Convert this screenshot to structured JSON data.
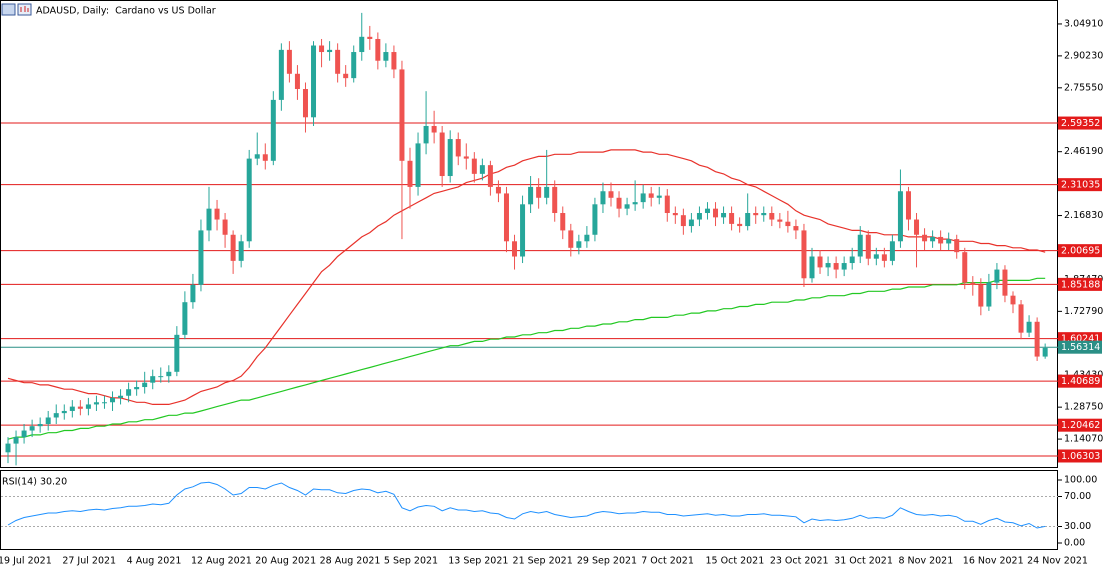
{
  "chart_data": [
    {
      "type": "candlestick",
      "title": "ADAUSD, Daily:  Cardano vs US Dollar",
      "categories": [
        "19 Jul 2021",
        null,
        null,
        null,
        null,
        null,
        null,
        null,
        "27 Jul 2021",
        null,
        null,
        null,
        null,
        null,
        null,
        null,
        "4 Aug 2021",
        null,
        null,
        null,
        null,
        null,
        null,
        null,
        "12 Aug 2021",
        null,
        null,
        null,
        null,
        null,
        null,
        null,
        "20 Aug 2021",
        null,
        null,
        null,
        null,
        null,
        null,
        null,
        "28 Aug 2021",
        null,
        null,
        null,
        null,
        null,
        null,
        null,
        "5 Sep 2021",
        null,
        null,
        null,
        null,
        null,
        null,
        null,
        "13 Sep 2021",
        null,
        null,
        null,
        null,
        null,
        null,
        null,
        "21 Sep 2021",
        null,
        null,
        null,
        null,
        null,
        null,
        null,
        "29 Sep 2021",
        null,
        null,
        null,
        null,
        null,
        null,
        null,
        "7 Oct 2021",
        null,
        null,
        null,
        null,
        null,
        null,
        null,
        "15 Oct 2021",
        null,
        null,
        null,
        null,
        null,
        null,
        null,
        "23 Oct 2021",
        null,
        null,
        null,
        null,
        null,
        null,
        null,
        "31 Oct 2021",
        null,
        null,
        null,
        null,
        null,
        null,
        null,
        "8 Nov 2021",
        null,
        null,
        null,
        null,
        null,
        null,
        null,
        "16 Nov 2021",
        null,
        null,
        null,
        null,
        null,
        null,
        null,
        "24 Nov 2021",
        null
      ],
      "open": [
        1.08,
        1.12,
        1.15,
        1.18,
        1.2,
        1.21,
        1.24,
        1.26,
        1.27,
        1.29,
        1.28,
        1.3,
        1.31,
        1.31,
        1.33,
        1.34,
        1.37,
        1.38,
        1.4,
        1.43,
        1.43,
        1.45,
        1.62,
        1.77,
        1.85,
        2.1,
        2.2,
        2.15,
        2.08,
        1.96,
        2.05,
        2.43,
        2.45,
        2.42,
        2.7,
        2.93,
        2.82,
        2.75,
        2.62,
        2.95,
        2.92,
        2.93,
        2.82,
        2.8,
        2.92,
        2.99,
        2.98,
        2.88,
        2.92,
        2.84,
        2.42,
        2.3,
        2.5,
        2.58,
        2.55,
        2.35,
        2.52,
        2.44,
        2.43,
        2.36,
        2.4,
        2.3,
        2.27,
        2.05,
        1.98,
        2.22,
        2.3,
        2.25,
        2.3,
        2.18,
        2.1,
        2.02,
        2.05,
        2.08,
        2.22,
        2.28,
        2.25,
        2.2,
        2.22,
        2.23,
        2.27,
        2.25,
        2.26,
        2.18,
        2.17,
        2.12,
        2.15,
        2.18,
        2.2,
        2.16,
        2.18,
        2.13,
        2.12,
        2.18,
        2.17,
        2.18,
        2.15,
        2.14,
        2.12,
        2.1,
        1.88,
        1.98,
        1.93,
        1.95,
        1.92,
        1.95,
        1.98,
        2.08,
        1.97,
        1.99,
        1.96,
        2.05,
        2.28,
        2.15,
        2.08,
        2.05,
        2.07,
        2.04,
        2.06,
        2.0,
        1.86,
        1.85,
        1.75,
        1.86,
        1.92,
        1.8,
        1.76,
        1.63,
        1.68,
        1.52
      ],
      "high": [
        1.15,
        1.18,
        1.21,
        1.23,
        1.24,
        1.27,
        1.3,
        1.3,
        1.32,
        1.32,
        1.33,
        1.34,
        1.34,
        1.36,
        1.37,
        1.4,
        1.41,
        1.45,
        1.46,
        1.47,
        1.48,
        1.66,
        1.82,
        1.9,
        2.15,
        2.3,
        2.24,
        2.18,
        2.1,
        2.08,
        2.47,
        2.55,
        2.5,
        2.74,
        2.96,
        2.97,
        2.86,
        2.78,
        2.97,
        2.98,
        2.97,
        2.96,
        2.86,
        2.95,
        3.1,
        3.04,
        3.01,
        2.96,
        2.95,
        2.88,
        2.48,
        2.55,
        2.74,
        2.65,
        2.58,
        2.56,
        2.55,
        2.5,
        2.46,
        2.43,
        2.42,
        2.33,
        2.3,
        2.08,
        2.26,
        2.35,
        2.34,
        2.47,
        2.33,
        2.21,
        2.13,
        2.08,
        2.12,
        2.25,
        2.32,
        2.32,
        2.28,
        2.25,
        2.33,
        2.31,
        2.3,
        2.3,
        2.29,
        2.21,
        2.2,
        2.18,
        2.21,
        2.23,
        2.23,
        2.21,
        2.21,
        2.16,
        2.27,
        2.21,
        2.21,
        2.21,
        2.18,
        2.19,
        2.15,
        2.13,
        2.02,
        2.01,
        1.98,
        1.98,
        1.98,
        2.02,
        2.12,
        2.1,
        2.02,
        2.02,
        2.08,
        2.38,
        2.3,
        2.18,
        2.11,
        2.1,
        2.1,
        2.09,
        2.08,
        2.02,
        1.89,
        1.88,
        1.9,
        1.95,
        1.94,
        1.82,
        1.78,
        1.71,
        1.7,
        1.58
      ],
      "low": [
        1.03,
        1.02,
        1.12,
        1.15,
        1.17,
        1.18,
        1.21,
        1.23,
        1.24,
        1.25,
        1.25,
        1.27,
        1.28,
        1.27,
        1.3,
        1.31,
        1.34,
        1.35,
        1.37,
        1.4,
        1.4,
        1.43,
        1.6,
        1.74,
        1.82,
        2.05,
        2.1,
        2.02,
        1.9,
        1.93,
        2.02,
        2.4,
        2.38,
        2.4,
        2.65,
        2.78,
        2.7,
        2.55,
        2.58,
        2.85,
        2.88,
        2.78,
        2.76,
        2.78,
        2.88,
        2.93,
        2.84,
        2.85,
        2.8,
        2.06,
        2.2,
        2.26,
        2.45,
        2.5,
        2.3,
        2.32,
        2.4,
        2.38,
        2.32,
        2.33,
        2.26,
        2.23,
        2.0,
        1.92,
        1.95,
        2.18,
        2.2,
        2.22,
        2.14,
        2.06,
        1.98,
        1.99,
        2.02,
        2.05,
        2.18,
        2.21,
        2.16,
        2.17,
        2.19,
        2.2,
        2.21,
        2.22,
        2.14,
        2.13,
        2.08,
        2.09,
        2.12,
        2.15,
        2.12,
        2.13,
        2.1,
        2.09,
        2.1,
        2.13,
        2.14,
        2.12,
        2.11,
        2.09,
        2.06,
        1.84,
        1.86,
        1.9,
        1.89,
        1.88,
        1.89,
        1.92,
        1.95,
        1.94,
        1.94,
        1.93,
        1.94,
        2.02,
        2.1,
        1.93,
        2.01,
        2.02,
        2.01,
        2.01,
        1.97,
        1.83,
        1.8,
        1.71,
        1.73,
        1.83,
        1.77,
        1.72,
        1.6,
        1.61,
        1.5,
        1.51
      ],
      "close": [
        1.12,
        1.15,
        1.18,
        1.2,
        1.21,
        1.24,
        1.26,
        1.27,
        1.29,
        1.28,
        1.3,
        1.31,
        1.31,
        1.33,
        1.34,
        1.37,
        1.38,
        1.4,
        1.43,
        1.43,
        1.45,
        1.62,
        1.77,
        1.85,
        2.1,
        2.2,
        2.15,
        2.08,
        1.96,
        2.05,
        2.43,
        2.45,
        2.42,
        2.7,
        2.93,
        2.82,
        2.75,
        2.62,
        2.95,
        2.92,
        2.93,
        2.82,
        2.8,
        2.92,
        2.99,
        2.98,
        2.88,
        2.92,
        2.84,
        2.42,
        2.3,
        2.5,
        2.58,
        2.55,
        2.35,
        2.52,
        2.44,
        2.43,
        2.36,
        2.4,
        2.3,
        2.27,
        2.05,
        1.98,
        2.22,
        2.3,
        2.25,
        2.3,
        2.18,
        2.1,
        2.02,
        2.05,
        2.08,
        2.22,
        2.28,
        2.25,
        2.2,
        2.22,
        2.23,
        2.27,
        2.25,
        2.26,
        2.18,
        2.17,
        2.12,
        2.15,
        2.18,
        2.2,
        2.16,
        2.18,
        2.13,
        2.12,
        2.18,
        2.17,
        2.18,
        2.15,
        2.14,
        2.12,
        2.1,
        1.88,
        1.98,
        1.93,
        1.95,
        1.92,
        1.95,
        1.98,
        2.08,
        1.97,
        1.99,
        1.96,
        2.05,
        2.28,
        2.15,
        2.08,
        2.05,
        2.07,
        2.04,
        2.06,
        2.0,
        1.86,
        1.85,
        1.75,
        1.86,
        1.92,
        1.8,
        1.76,
        1.63,
        1.68,
        1.52,
        1.56
      ],
      "up_color": "#26a69a",
      "down_color": "#ef5350",
      "overlays": [
        {
          "color": "#e8322b",
          "values": [
            1.42,
            1.41,
            1.4,
            1.4,
            1.39,
            1.39,
            1.38,
            1.37,
            1.37,
            1.36,
            1.35,
            1.35,
            1.34,
            1.33,
            1.33,
            1.32,
            1.31,
            1.31,
            1.3,
            1.3,
            1.3,
            1.31,
            1.32,
            1.34,
            1.36,
            1.37,
            1.38,
            1.4,
            1.41,
            1.43,
            1.47,
            1.52,
            1.56,
            1.61,
            1.66,
            1.71,
            1.76,
            1.81,
            1.86,
            1.91,
            1.94,
            1.98,
            2.01,
            2.04,
            2.07,
            2.09,
            2.12,
            2.14,
            2.17,
            2.19,
            2.21,
            2.23,
            2.25,
            2.27,
            2.28,
            2.29,
            2.3,
            2.32,
            2.33,
            2.34,
            2.36,
            2.37,
            2.39,
            2.4,
            2.42,
            2.43,
            2.44,
            2.44,
            2.45,
            2.45,
            2.45,
            2.46,
            2.46,
            2.46,
            2.46,
            2.47,
            2.47,
            2.47,
            2.47,
            2.46,
            2.46,
            2.45,
            2.45,
            2.44,
            2.43,
            2.42,
            2.4,
            2.39,
            2.37,
            2.36,
            2.34,
            2.33,
            2.31,
            2.3,
            2.28,
            2.26,
            2.24,
            2.22,
            2.19,
            2.17,
            2.16,
            2.15,
            2.13,
            2.12,
            2.11,
            2.1,
            2.1,
            2.09,
            2.09,
            2.08,
            2.08,
            2.08,
            2.07,
            2.07,
            2.07,
            2.07,
            2.06,
            2.06,
            2.05,
            2.05,
            2.05,
            2.04,
            2.04,
            2.03,
            2.03,
            2.02,
            2.02,
            2.01,
            2.01,
            2.0
          ]
        },
        {
          "color": "#22c822",
          "values": [
            1.14,
            1.15,
            1.15,
            1.16,
            1.16,
            1.17,
            1.17,
            1.18,
            1.18,
            1.19,
            1.19,
            1.2,
            1.2,
            1.21,
            1.21,
            1.22,
            1.22,
            1.23,
            1.23,
            1.24,
            1.25,
            1.25,
            1.26,
            1.26,
            1.27,
            1.28,
            1.29,
            1.3,
            1.31,
            1.32,
            1.32,
            1.33,
            1.34,
            1.35,
            1.36,
            1.37,
            1.38,
            1.39,
            1.4,
            1.41,
            1.42,
            1.43,
            1.44,
            1.45,
            1.46,
            1.47,
            1.48,
            1.49,
            1.5,
            1.51,
            1.52,
            1.53,
            1.54,
            1.55,
            1.56,
            1.57,
            1.57,
            1.58,
            1.59,
            1.59,
            1.6,
            1.6,
            1.61,
            1.61,
            1.62,
            1.62,
            1.63,
            1.63,
            1.64,
            1.64,
            1.65,
            1.65,
            1.66,
            1.66,
            1.67,
            1.67,
            1.68,
            1.68,
            1.69,
            1.69,
            1.7,
            1.7,
            1.7,
            1.71,
            1.71,
            1.72,
            1.72,
            1.73,
            1.73,
            1.74,
            1.74,
            1.75,
            1.75,
            1.76,
            1.76,
            1.77,
            1.77,
            1.77,
            1.78,
            1.78,
            1.79,
            1.79,
            1.8,
            1.8,
            1.8,
            1.81,
            1.81,
            1.82,
            1.82,
            1.82,
            1.83,
            1.83,
            1.84,
            1.84,
            1.84,
            1.85,
            1.85,
            1.85,
            1.85,
            1.86,
            1.86,
            1.86,
            1.86,
            1.87,
            1.87,
            1.87,
            1.87,
            1.87,
            1.88,
            1.88
          ]
        }
      ],
      "levels": [
        {
          "value": 2.59352,
          "color": "#e31a1a"
        },
        {
          "value": 2.31035,
          "color": "#e31a1a"
        },
        {
          "value": 2.00695,
          "color": "#e31a1a"
        },
        {
          "value": 1.85188,
          "color": "#e31a1a"
        },
        {
          "value": 1.60241,
          "color": "#e31a1a"
        },
        {
          "value": 1.40689,
          "color": "#e31a1a"
        },
        {
          "value": 1.20462,
          "color": "#e31a1a"
        },
        {
          "value": 1.06303,
          "color": "#e31a1a"
        }
      ],
      "last_price": {
        "value": 1.56314,
        "color": "#2a8f86"
      },
      "ylim": [
        1.0124,
        3.1546
      ],
      "yticks": [
        {
          "value": 3.0491,
          "label": "3.04910"
        },
        {
          "value": 2.9023,
          "label": "2.90230"
        },
        {
          "value": 2.7555,
          "label": "2.75550"
        },
        {
          "value": 2.4619,
          "label": "2.46190"
        },
        {
          "value": 2.1683,
          "label": "2.16830"
        },
        {
          "value": 1.8747,
          "label": "1.87470"
        },
        {
          "value": 1.7279,
          "label": "1.72790"
        },
        {
          "value": 1.4343,
          "label": "1.43430"
        },
        {
          "value": 1.2875,
          "label": "1.28750"
        },
        {
          "value": 1.1407,
          "label": "1.14070"
        }
      ],
      "grid": false
    },
    {
      "type": "line",
      "title": "RSI(14) 30.20",
      "color": "#1e90ff",
      "values": [
        32,
        38,
        42,
        44,
        46,
        48,
        48,
        50,
        51,
        50,
        52,
        53,
        52,
        54,
        55,
        57,
        57,
        58,
        60,
        59,
        61,
        72,
        80,
        83,
        88,
        89,
        86,
        80,
        72,
        74,
        82,
        82,
        80,
        85,
        88,
        82,
        78,
        72,
        80,
        79,
        79,
        75,
        74,
        78,
        80,
        79,
        75,
        77,
        73,
        55,
        51,
        56,
        58,
        57,
        51,
        55,
        52,
        52,
        50,
        51,
        48,
        47,
        42,
        40,
        47,
        50,
        48,
        50,
        46,
        44,
        42,
        43,
        44,
        48,
        50,
        49,
        47,
        48,
        48,
        50,
        49,
        49,
        46,
        46,
        44,
        45,
        46,
        47,
        45,
        46,
        44,
        44,
        46,
        46,
        47,
        45,
        45,
        44,
        43,
        35,
        40,
        38,
        39,
        38,
        39,
        41,
        45,
        41,
        42,
        41,
        45,
        55,
        50,
        46,
        45,
        46,
        44,
        45,
        43,
        37,
        37,
        33,
        38,
        41,
        36,
        35,
        31,
        34,
        28,
        30.2
      ],
      "ylim": [
        0,
        100
      ],
      "yticks": [
        {
          "value": 100,
          "label": "100.00"
        },
        {
          "value": 70,
          "label": "70.00"
        },
        {
          "value": 30,
          "label": "30.00"
        },
        {
          "value": 0,
          "label": "0.00"
        }
      ],
      "grid": true
    }
  ]
}
